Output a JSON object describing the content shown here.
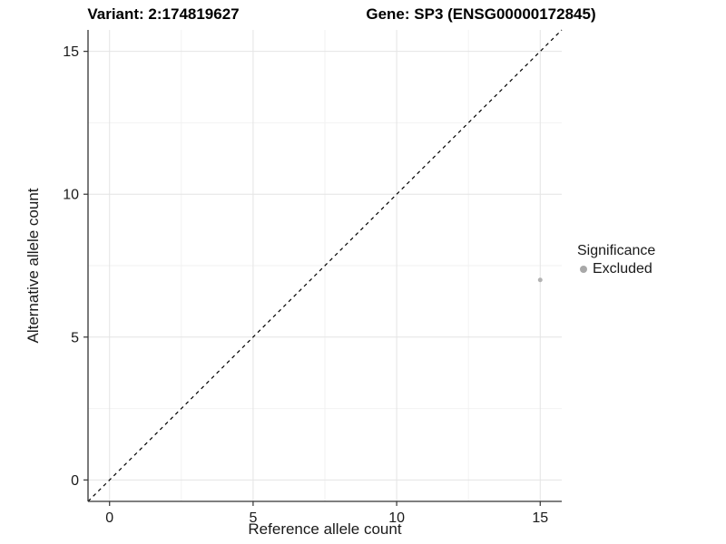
{
  "titles": {
    "variant": "Variant: 2:174819627",
    "gene": "Gene: SP3 (ENSG00000172845)"
  },
  "legend": {
    "title": "Significance",
    "items": [
      {
        "label": "Excluded",
        "color": "#a8a8a8"
      }
    ]
  },
  "colors": {
    "point": "#b3b3b3",
    "legend_key": "#a8a8a8",
    "axis_line": "#333333",
    "tick_mark": "#333333",
    "tick_label": "#1a1a1a",
    "major_grid": "#e4e4e4",
    "minor_grid": "#f2f2f2",
    "reference_line": "#000000"
  },
  "chart_data": {
    "type": "scatter",
    "title_left": "Variant: 2:174819627",
    "title_right": "Gene: SP3 (ENSG00000172845)",
    "xlabel": "Reference allele count",
    "ylabel": "Alternative allele count",
    "xlim": [
      -0.75,
      15.75
    ],
    "ylim": [
      -0.75,
      15.75
    ],
    "x_major_ticks": [
      0,
      5,
      10,
      15
    ],
    "y_major_ticks": [
      0,
      5,
      10,
      15
    ],
    "x_minor_gridlines": [
      2.5,
      7.5,
      12.5
    ],
    "y_minor_gridlines": [
      2.5,
      7.5,
      12.5
    ],
    "grid": true,
    "reference_line": {
      "type": "identity",
      "style": "dashed",
      "from": -0.75,
      "to": 15.75
    },
    "series": [
      {
        "name": "Excluded",
        "color": "#b3b3b3",
        "point_radius_px": 2.5,
        "points": [
          {
            "x": 15,
            "y": 7
          }
        ]
      }
    ],
    "legend": {
      "title": "Significance",
      "position": "right"
    }
  }
}
